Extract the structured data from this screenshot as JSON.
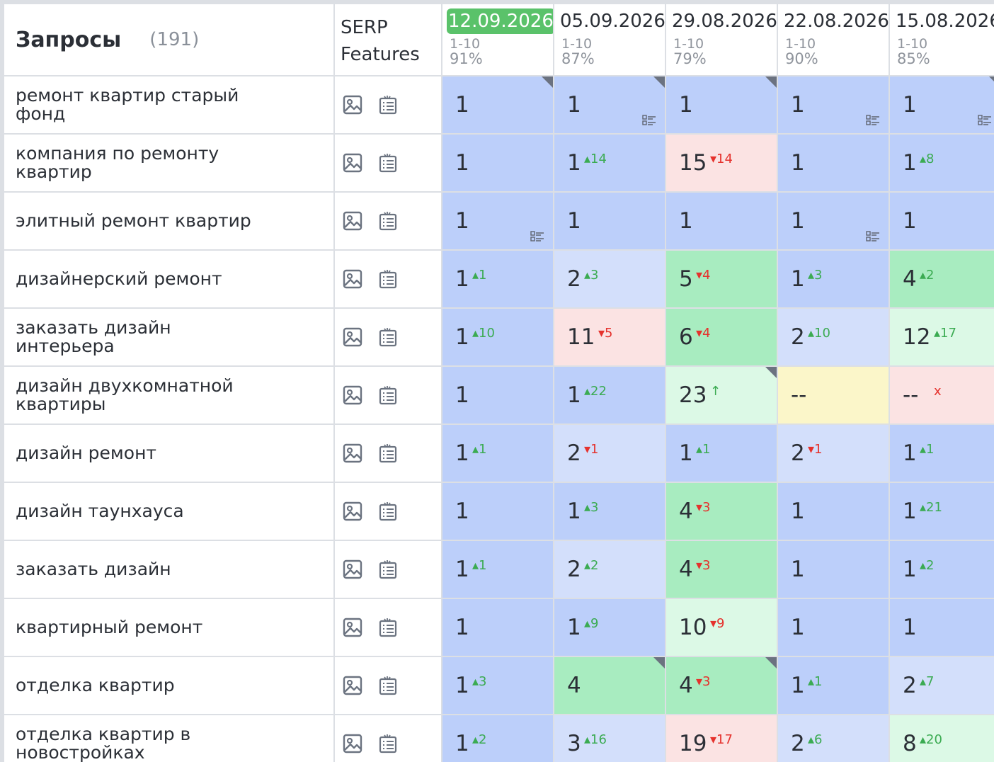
{
  "header": {
    "queries_title": "Запросы",
    "queries_count": "(191)",
    "serp_line1": "SERP",
    "serp_line2": "Features",
    "dates": [
      {
        "date": "12.09.2026",
        "range": "1-10",
        "pct": "91%",
        "active": true
      },
      {
        "date": "05.09.2026",
        "range": "1-10",
        "pct": "87%",
        "active": false
      },
      {
        "date": "29.08.2026",
        "range": "1-10",
        "pct": "79%",
        "active": false
      },
      {
        "date": "22.08.2026",
        "range": "1-10",
        "pct": "90%",
        "active": false
      },
      {
        "date": "15.08.2026",
        "range": "1-10",
        "pct": "85%",
        "active": false
      }
    ]
  },
  "icons": {
    "image": "image-icon",
    "list": "list-icon",
    "features": "serp-features-icon"
  },
  "colors": {
    "blue": "#bccffa",
    "light_blue": "#d3dffb",
    "green": "#a8ecc0",
    "light_green": "#dcf9e6",
    "pink": "#fbe3e3",
    "yellow": "#fbf6c9",
    "active_date": "#5ac26a",
    "up": "#3bab52",
    "down": "#e5322d"
  },
  "rows": [
    {
      "query": "ремонт квартир старый фонд",
      "cells": [
        {
          "v": "1",
          "c": "",
          "d": "",
          "bg": "blue",
          "corner": true,
          "feat": false
        },
        {
          "v": "1",
          "c": "",
          "d": "",
          "bg": "blue",
          "corner": true,
          "feat": true
        },
        {
          "v": "1",
          "c": "",
          "d": "",
          "bg": "blue",
          "corner": true,
          "feat": false
        },
        {
          "v": "1",
          "c": "",
          "d": "",
          "bg": "blue",
          "corner": false,
          "feat": true
        },
        {
          "v": "1",
          "c": "",
          "d": "",
          "bg": "blue",
          "corner": true,
          "feat": true
        }
      ],
      "edge": "white"
    },
    {
      "query": "компания по ремонту квартир",
      "cells": [
        {
          "v": "1",
          "c": "",
          "d": "",
          "bg": "blue"
        },
        {
          "v": "1",
          "c": "14",
          "d": "up",
          "bg": "blue"
        },
        {
          "v": "15",
          "c": "14",
          "d": "down",
          "bg": "pink"
        },
        {
          "v": "1",
          "c": "",
          "d": "",
          "bg": "blue"
        },
        {
          "v": "1",
          "c": "8",
          "d": "up",
          "bg": "blue"
        }
      ],
      "edge": "lgreen"
    },
    {
      "query": "элитный ремонт квартир",
      "cells": [
        {
          "v": "1",
          "c": "",
          "d": "",
          "bg": "blue",
          "feat": true
        },
        {
          "v": "1",
          "c": "",
          "d": "",
          "bg": "blue"
        },
        {
          "v": "1",
          "c": "",
          "d": "",
          "bg": "blue"
        },
        {
          "v": "1",
          "c": "",
          "d": "",
          "bg": "blue",
          "feat": true
        },
        {
          "v": "1",
          "c": "",
          "d": "",
          "bg": "blue"
        }
      ],
      "edge": "blue"
    },
    {
      "query": "дизайнерский ремонт",
      "cells": [
        {
          "v": "1",
          "c": "1",
          "d": "up",
          "bg": "blue"
        },
        {
          "v": "2",
          "c": "3",
          "d": "up",
          "bg": "lblue"
        },
        {
          "v": "5",
          "c": "4",
          "d": "down",
          "bg": "green"
        },
        {
          "v": "1",
          "c": "3",
          "d": "up",
          "bg": "blue"
        },
        {
          "v": "4",
          "c": "2",
          "d": "up",
          "bg": "green"
        }
      ],
      "edge": "blue"
    },
    {
      "query": "заказать дизайн интерьера",
      "cells": [
        {
          "v": "1",
          "c": "10",
          "d": "up",
          "bg": "blue"
        },
        {
          "v": "11",
          "c": "5",
          "d": "down",
          "bg": "pink"
        },
        {
          "v": "6",
          "c": "4",
          "d": "down",
          "bg": "green"
        },
        {
          "v": "2",
          "c": "10",
          "d": "up",
          "bg": "lblue"
        },
        {
          "v": "12",
          "c": "17",
          "d": "up",
          "bg": "lgreen"
        }
      ],
      "edge": "pink"
    },
    {
      "query": "дизайн двухкомнатной квартиры",
      "cells": [
        {
          "v": "1",
          "c": "",
          "d": "",
          "bg": "blue"
        },
        {
          "v": "1",
          "c": "22",
          "d": "up",
          "bg": "blue"
        },
        {
          "v": "23",
          "c": "↑",
          "d": "up",
          "bg": "lgreen",
          "corner": true
        },
        {
          "v": "--",
          "c": "",
          "d": "",
          "bg": "yellow"
        },
        {
          "v": "--",
          "c": "x",
          "d": "x",
          "bg": "pink"
        }
      ],
      "edge": "pink"
    },
    {
      "query": "дизайн ремонт",
      "cells": [
        {
          "v": "1",
          "c": "1",
          "d": "up",
          "bg": "blue"
        },
        {
          "v": "2",
          "c": "1",
          "d": "down",
          "bg": "lblue"
        },
        {
          "v": "1",
          "c": "1",
          "d": "up",
          "bg": "blue"
        },
        {
          "v": "2",
          "c": "1",
          "d": "down",
          "bg": "lblue"
        },
        {
          "v": "1",
          "c": "1",
          "d": "up",
          "bg": "blue"
        }
      ],
      "edge": "blue"
    },
    {
      "query": "дизайн таунхауса",
      "cells": [
        {
          "v": "1",
          "c": "",
          "d": "",
          "bg": "blue"
        },
        {
          "v": "1",
          "c": "3",
          "d": "up",
          "bg": "blue"
        },
        {
          "v": "4",
          "c": "3",
          "d": "down",
          "bg": "green"
        },
        {
          "v": "1",
          "c": "",
          "d": "",
          "bg": "blue"
        },
        {
          "v": "1",
          "c": "21",
          "d": "up",
          "bg": "blue"
        }
      ],
      "edge": "pink"
    },
    {
      "query": "заказать дизайн",
      "cells": [
        {
          "v": "1",
          "c": "1",
          "d": "up",
          "bg": "blue"
        },
        {
          "v": "2",
          "c": "2",
          "d": "up",
          "bg": "lblue"
        },
        {
          "v": "4",
          "c": "3",
          "d": "down",
          "bg": "green"
        },
        {
          "v": "1",
          "c": "",
          "d": "",
          "bg": "blue"
        },
        {
          "v": "1",
          "c": "2",
          "d": "up",
          "bg": "blue"
        }
      ],
      "edge": "blue"
    },
    {
      "query": "квартирный ремонт",
      "cells": [
        {
          "v": "1",
          "c": "",
          "d": "",
          "bg": "blue"
        },
        {
          "v": "1",
          "c": "9",
          "d": "up",
          "bg": "blue"
        },
        {
          "v": "10",
          "c": "9",
          "d": "down",
          "bg": "lgreen"
        },
        {
          "v": "1",
          "c": "",
          "d": "",
          "bg": "blue"
        },
        {
          "v": "1",
          "c": "",
          "d": "",
          "bg": "blue"
        }
      ],
      "edge": "blue"
    },
    {
      "query": "отделка квартир",
      "cells": [
        {
          "v": "1",
          "c": "3",
          "d": "up",
          "bg": "blue"
        },
        {
          "v": "4",
          "c": "",
          "d": "",
          "bg": "green",
          "corner": true
        },
        {
          "v": "4",
          "c": "3",
          "d": "down",
          "bg": "green",
          "corner": true
        },
        {
          "v": "1",
          "c": "1",
          "d": "up",
          "bg": "blue"
        },
        {
          "v": "2",
          "c": "7",
          "d": "up",
          "bg": "lblue"
        }
      ],
      "edge": "blue"
    },
    {
      "query": "отделка квартир в новостройках",
      "cells": [
        {
          "v": "1",
          "c": "2",
          "d": "up",
          "bg": "blue"
        },
        {
          "v": "3",
          "c": "16",
          "d": "up",
          "bg": "lblue"
        },
        {
          "v": "19",
          "c": "17",
          "d": "down",
          "bg": "pink"
        },
        {
          "v": "2",
          "c": "6",
          "d": "up",
          "bg": "lblue"
        },
        {
          "v": "8",
          "c": "20",
          "d": "up",
          "bg": "lgreen"
        }
      ],
      "edge": "blue"
    }
  ]
}
